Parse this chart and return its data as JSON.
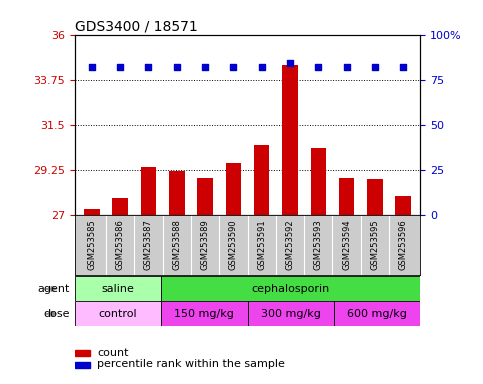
{
  "title": "GDS3400 / 18571",
  "samples": [
    "GSM253585",
    "GSM253586",
    "GSM253587",
    "GSM253588",
    "GSM253589",
    "GSM253590",
    "GSM253591",
    "GSM253592",
    "GSM253593",
    "GSM253594",
    "GSM253595",
    "GSM253596"
  ],
  "bar_values": [
    27.3,
    27.85,
    29.4,
    29.2,
    28.85,
    29.6,
    30.5,
    34.5,
    30.35,
    28.85,
    28.8,
    27.95
  ],
  "percentile_values": [
    82,
    82,
    82,
    82,
    82,
    82,
    82,
    84,
    82,
    82,
    82,
    82
  ],
  "bar_color": "#cc0000",
  "percentile_color": "#0000cc",
  "ylim_left": [
    27,
    36
  ],
  "yticks_left": [
    27,
    29.25,
    31.5,
    33.75,
    36
  ],
  "yticklabels_left": [
    "27",
    "29.25",
    "31.5",
    "33.75",
    "36"
  ],
  "ylim_right": [
    0,
    100
  ],
  "yticks_right": [
    0,
    25,
    50,
    75,
    100
  ],
  "yticklabels_right": [
    "0",
    "25",
    "50",
    "75",
    "100%"
  ],
  "agent_groups": [
    {
      "label": "saline",
      "start": 0,
      "end": 3,
      "color": "#aaffaa"
    },
    {
      "label": "cephalosporin",
      "start": 3,
      "end": 12,
      "color": "#44dd44"
    }
  ],
  "dose_groups": [
    {
      "label": "control",
      "start": 0,
      "end": 3,
      "color": "#ffbbff"
    },
    {
      "label": "150 mg/kg",
      "start": 3,
      "end": 6,
      "color": "#ee44ee"
    },
    {
      "label": "300 mg/kg",
      "start": 6,
      "end": 9,
      "color": "#ee44ee"
    },
    {
      "label": "600 mg/kg",
      "start": 9,
      "end": 12,
      "color": "#ee44ee"
    }
  ],
  "legend_count_color": "#cc0000",
  "legend_percentile_color": "#0000cc",
  "background_color": "#ffffff",
  "plot_bg_color": "#ffffff",
  "title_fontsize": 10,
  "tick_fontsize": 8,
  "sample_fontsize": 6,
  "group_fontsize": 8,
  "legend_fontsize": 8
}
